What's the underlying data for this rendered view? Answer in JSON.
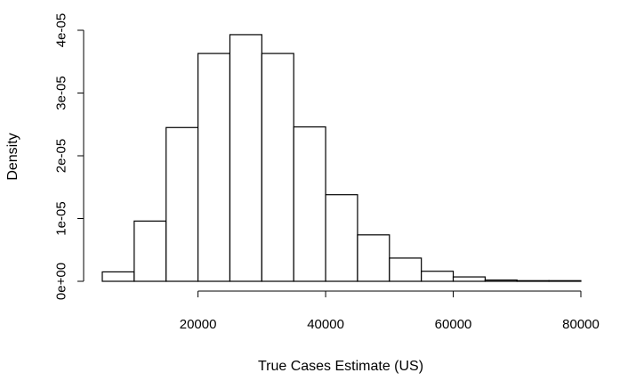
{
  "chart_data": {
    "type": "bar",
    "subtype": "histogram",
    "title": "",
    "xlabel": "True Cases Estimate (US)",
    "ylabel": "Density",
    "x_tick_labels": [
      "20000",
      "40000",
      "60000",
      "80000"
    ],
    "y_tick_labels": [
      "0e+00",
      "1e-05",
      "2e-05",
      "3e-05",
      "4e-05"
    ],
    "x_ticks": [
      20000,
      40000,
      60000,
      80000
    ],
    "y_ticks": [
      0,
      1e-05,
      2e-05,
      3e-05,
      4e-05
    ],
    "xlim": [
      5000,
      80000
    ],
    "ylim": [
      0,
      4e-05
    ],
    "bin_width": 5000,
    "bins": [
      {
        "x0": 5000,
        "x1": 10000,
        "density": 1.5e-06
      },
      {
        "x0": 10000,
        "x1": 15000,
        "density": 9.6e-06
      },
      {
        "x0": 15000,
        "x1": 20000,
        "density": 2.45e-05
      },
      {
        "x0": 20000,
        "x1": 25000,
        "density": 3.63e-05
      },
      {
        "x0": 25000,
        "x1": 30000,
        "density": 3.93e-05
      },
      {
        "x0": 30000,
        "x1": 35000,
        "density": 3.63e-05
      },
      {
        "x0": 35000,
        "x1": 40000,
        "density": 2.46e-05
      },
      {
        "x0": 40000,
        "x1": 45000,
        "density": 1.38e-05
      },
      {
        "x0": 45000,
        "x1": 50000,
        "density": 7.4e-06
      },
      {
        "x0": 50000,
        "x1": 55000,
        "density": 3.7e-06
      },
      {
        "x0": 55000,
        "x1": 60000,
        "density": 1.6e-06
      },
      {
        "x0": 60000,
        "x1": 65000,
        "density": 7e-07
      },
      {
        "x0": 65000,
        "x1": 70000,
        "density": 2e-07
      },
      {
        "x0": 70000,
        "x1": 75000,
        "density": 1e-07
      },
      {
        "x0": 75000,
        "x1": 80000,
        "density": 1e-07
      }
    ],
    "grid": false,
    "legend": "none"
  }
}
